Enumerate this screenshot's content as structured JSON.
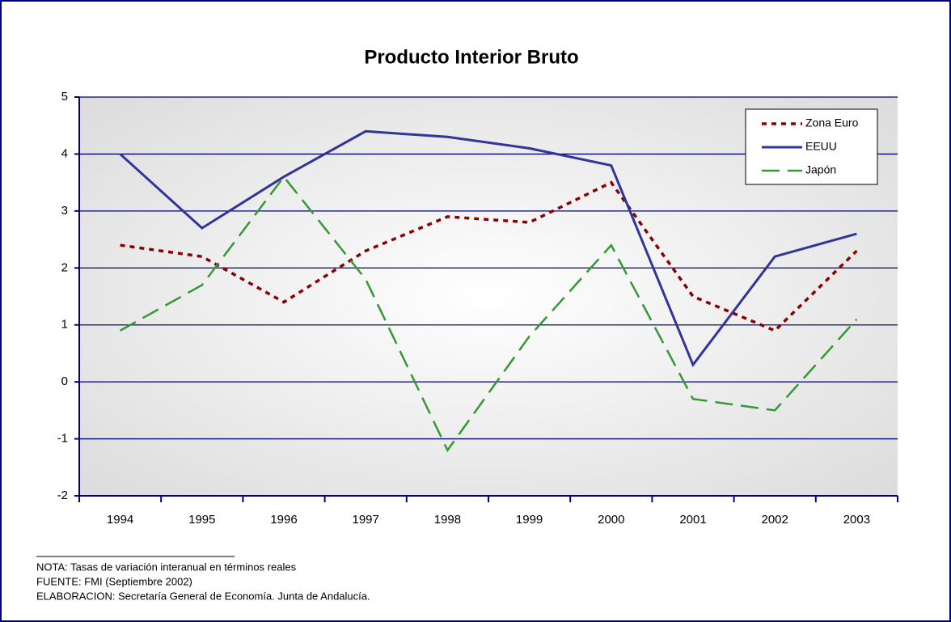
{
  "chart_data": {
    "type": "line",
    "title": "Producto Interior Bruto",
    "categories": [
      "1994",
      "1995",
      "1996",
      "1997",
      "1998",
      "1999",
      "2000",
      "2001",
      "2002",
      "2003"
    ],
    "series": [
      {
        "name": "Zona Euro",
        "color": "#8b0000",
        "dash": "dotted",
        "values": [
          2.4,
          2.2,
          1.4,
          2.3,
          2.9,
          2.8,
          3.5,
          1.5,
          0.9,
          2.3
        ]
      },
      {
        "name": "EEUU",
        "color": "#333399",
        "dash": "solid",
        "values": [
          4.0,
          2.7,
          3.6,
          4.4,
          4.3,
          4.1,
          3.8,
          0.3,
          2.2,
          2.6
        ]
      },
      {
        "name": "Japón",
        "color": "#339933",
        "dash": "dashed",
        "values": [
          0.9,
          1.7,
          3.6,
          1.8,
          -1.2,
          0.8,
          2.4,
          -0.3,
          -0.5,
          1.1
        ]
      }
    ],
    "ylim": [
      -2,
      5
    ],
    "yticks": [
      -2,
      -1,
      0,
      1,
      2,
      3,
      4,
      5
    ],
    "grid": true,
    "legend": "upper right",
    "notes": [
      "NOTA: Tasas de variación interanual en términos reales",
      "FUENTE: FMI (Septiembre 2002)",
      "ELABORACION: Secretaría General de Economía. Junta de Andalucía."
    ]
  }
}
